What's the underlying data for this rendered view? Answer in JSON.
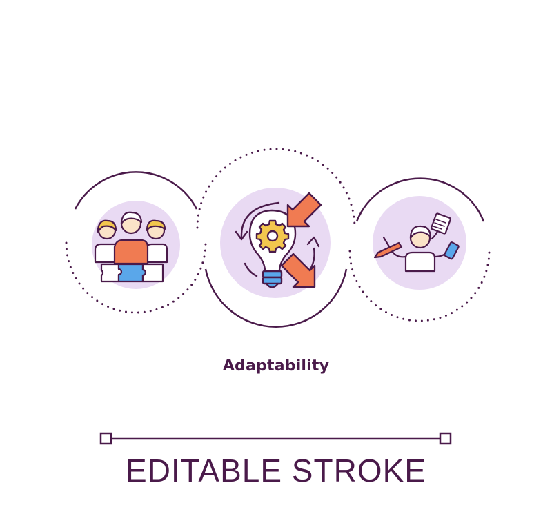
{
  "title": "Adaptability",
  "footer": "EDITABLE STROKE",
  "icons": {
    "left": "team-puzzle-icon",
    "center": "lightbulb-gear-icon",
    "right": "multitasking-person-icon"
  },
  "colors": {
    "stroke": "#4a1a4a",
    "disc": "#e9daf3",
    "text": "#4a1a4a",
    "orange": "#f07b52",
    "yellow": "#f3c74e",
    "blue": "#5aa7ea",
    "skin": "#fbe3c8"
  }
}
